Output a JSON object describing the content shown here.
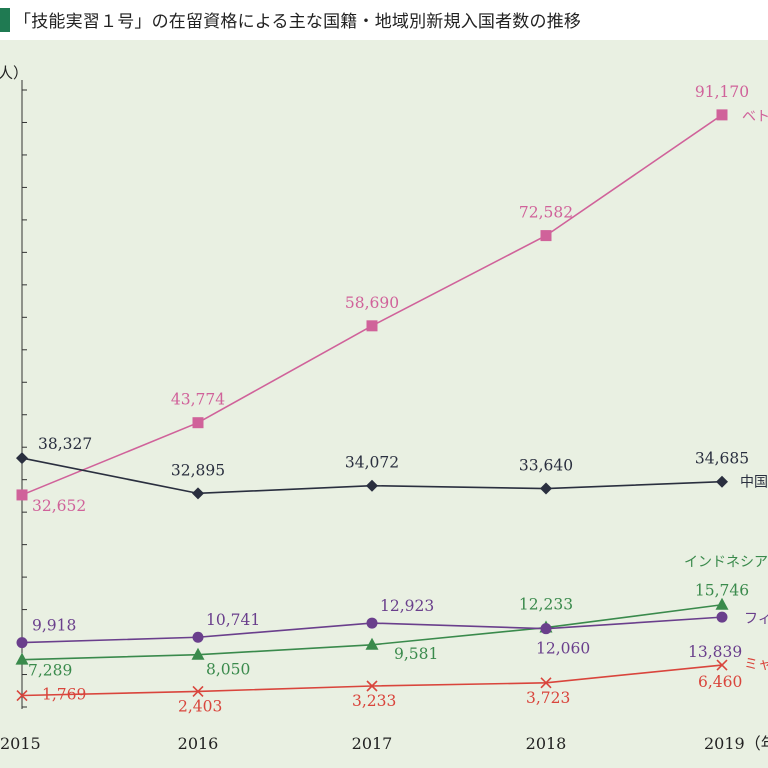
{
  "title": "「技能実習１号」の在留資格による主な国籍・地域別新規入国者数の推移",
  "colors": {
    "vietnam": "#d0629a",
    "china": "#2a2f3f",
    "indonesia": "#3a8a4c",
    "philippines": "#6a3f8c",
    "myanmar": "#d9453c",
    "axis": "#333333",
    "background": "#e9f0e2",
    "title_mark": "#1f7a52"
  },
  "chart_data": {
    "type": "line",
    "title": "「技能実習１号」の在留資格による主な国籍・地域別新規入国者数の推移",
    "ylabel": "人）",
    "xlabel": "（年",
    "x": [
      "2015",
      "2016",
      "2017",
      "2018",
      "2019"
    ],
    "x_last_suffix": "（年",
    "ylim": [
      0,
      95000
    ],
    "ytick_step": 5000,
    "grid": false,
    "series": [
      {
        "key": "vietnam",
        "name": "ベト",
        "marker": "square",
        "values": [
          32652,
          43774,
          58690,
          72582,
          91170
        ],
        "labels": [
          "32,652",
          "43,774",
          "58,690",
          "72,582",
          "91,170"
        ]
      },
      {
        "key": "china",
        "name": "中国",
        "marker": "diamond",
        "values": [
          38327,
          32895,
          34072,
          33640,
          34685
        ],
        "labels": [
          "38,327",
          "32,895",
          "34,072",
          "33,640",
          "34,685"
        ]
      },
      {
        "key": "indonesia",
        "name": "インドネシア",
        "marker": "triangle",
        "values": [
          7289,
          8050,
          9581,
          12233,
          15746
        ],
        "labels": [
          "7,289",
          "8,050",
          "9,581",
          "12,233",
          "15,746"
        ]
      },
      {
        "key": "philippines",
        "name": "フィ",
        "marker": "circle",
        "values": [
          9918,
          10741,
          12923,
          12060,
          13839
        ],
        "labels": [
          "9,918",
          "10,741",
          "12,923",
          "12,060",
          "13,839"
        ]
      },
      {
        "key": "myanmar",
        "name": "ミャ",
        "marker": "cross",
        "values": [
          1769,
          2403,
          3233,
          3723,
          6460
        ],
        "labels": [
          "1,769",
          "2,403",
          "3,233",
          "3,723",
          "6,460"
        ]
      }
    ]
  }
}
